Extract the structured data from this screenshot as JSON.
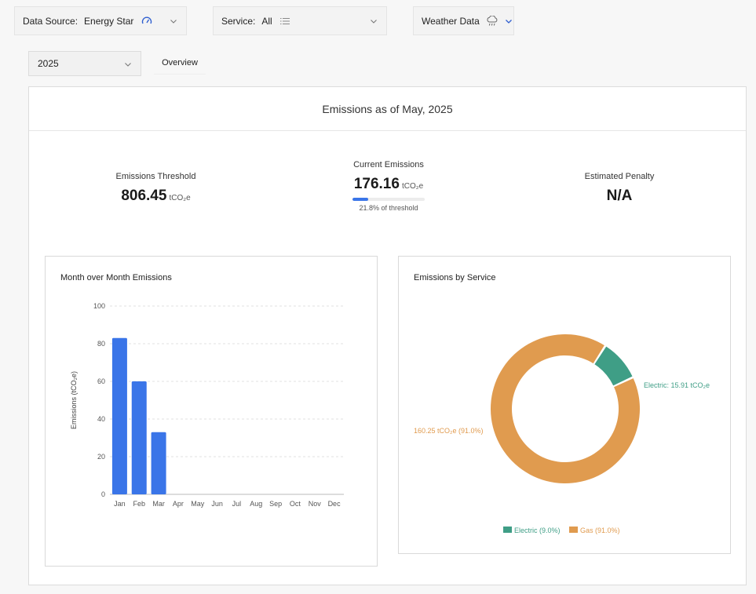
{
  "filters": {
    "data_source": {
      "label": "Data Source:",
      "value": "Energy Star",
      "icon": "gauge-icon"
    },
    "service": {
      "label": "Service:",
      "value": "All",
      "icon": "list-icon"
    },
    "weather": {
      "label": "Weather Data",
      "icon": "cloud-rain-icon"
    }
  },
  "year_select": {
    "value": "2025"
  },
  "tabs": {
    "overview": "Overview"
  },
  "panel": {
    "title": "Emissions as of May, 2025"
  },
  "kpis": {
    "threshold": {
      "label": "Emissions Threshold",
      "value": "806.45",
      "unit": "tCO₂e"
    },
    "current": {
      "label": "Current Emissions",
      "value": "176.16",
      "unit": "tCO₂e",
      "progress": 0.218,
      "caption": "21.8% of threshold"
    },
    "penalty": {
      "label": "Estimated Penalty",
      "value": "N/A"
    }
  },
  "colors": {
    "accent": "#3a75e8",
    "electric": "#3f9e86",
    "gas": "#e09b4f"
  },
  "chart_data": [
    {
      "type": "bar",
      "title": "Month over Month Emissions",
      "categories": [
        "Jan",
        "Feb",
        "Mar",
        "Apr",
        "May",
        "Jun",
        "Jul",
        "Aug",
        "Sep",
        "Oct",
        "Nov",
        "Dec"
      ],
      "values": [
        83,
        60,
        33,
        null,
        null,
        null,
        null,
        null,
        null,
        null,
        null,
        null
      ],
      "ylabel": "Emissions (tCO₂e)",
      "ylim": [
        0,
        100
      ],
      "yticks": [
        0,
        20,
        40,
        60,
        80,
        100
      ],
      "grid": true
    },
    {
      "type": "pie",
      "title": "Emissions by Service",
      "slices": [
        {
          "name": "Electric",
          "value": 15.91,
          "label": "Electric: 15.91 tCO₂e",
          "legend": "Electric (9.0%)"
        },
        {
          "name": "Gas",
          "value": 160.25,
          "label": "160.25 tCO₂e (91.0%)",
          "legend": "Gas (91.0%)"
        }
      ],
      "legend_position": "bottom"
    }
  ]
}
